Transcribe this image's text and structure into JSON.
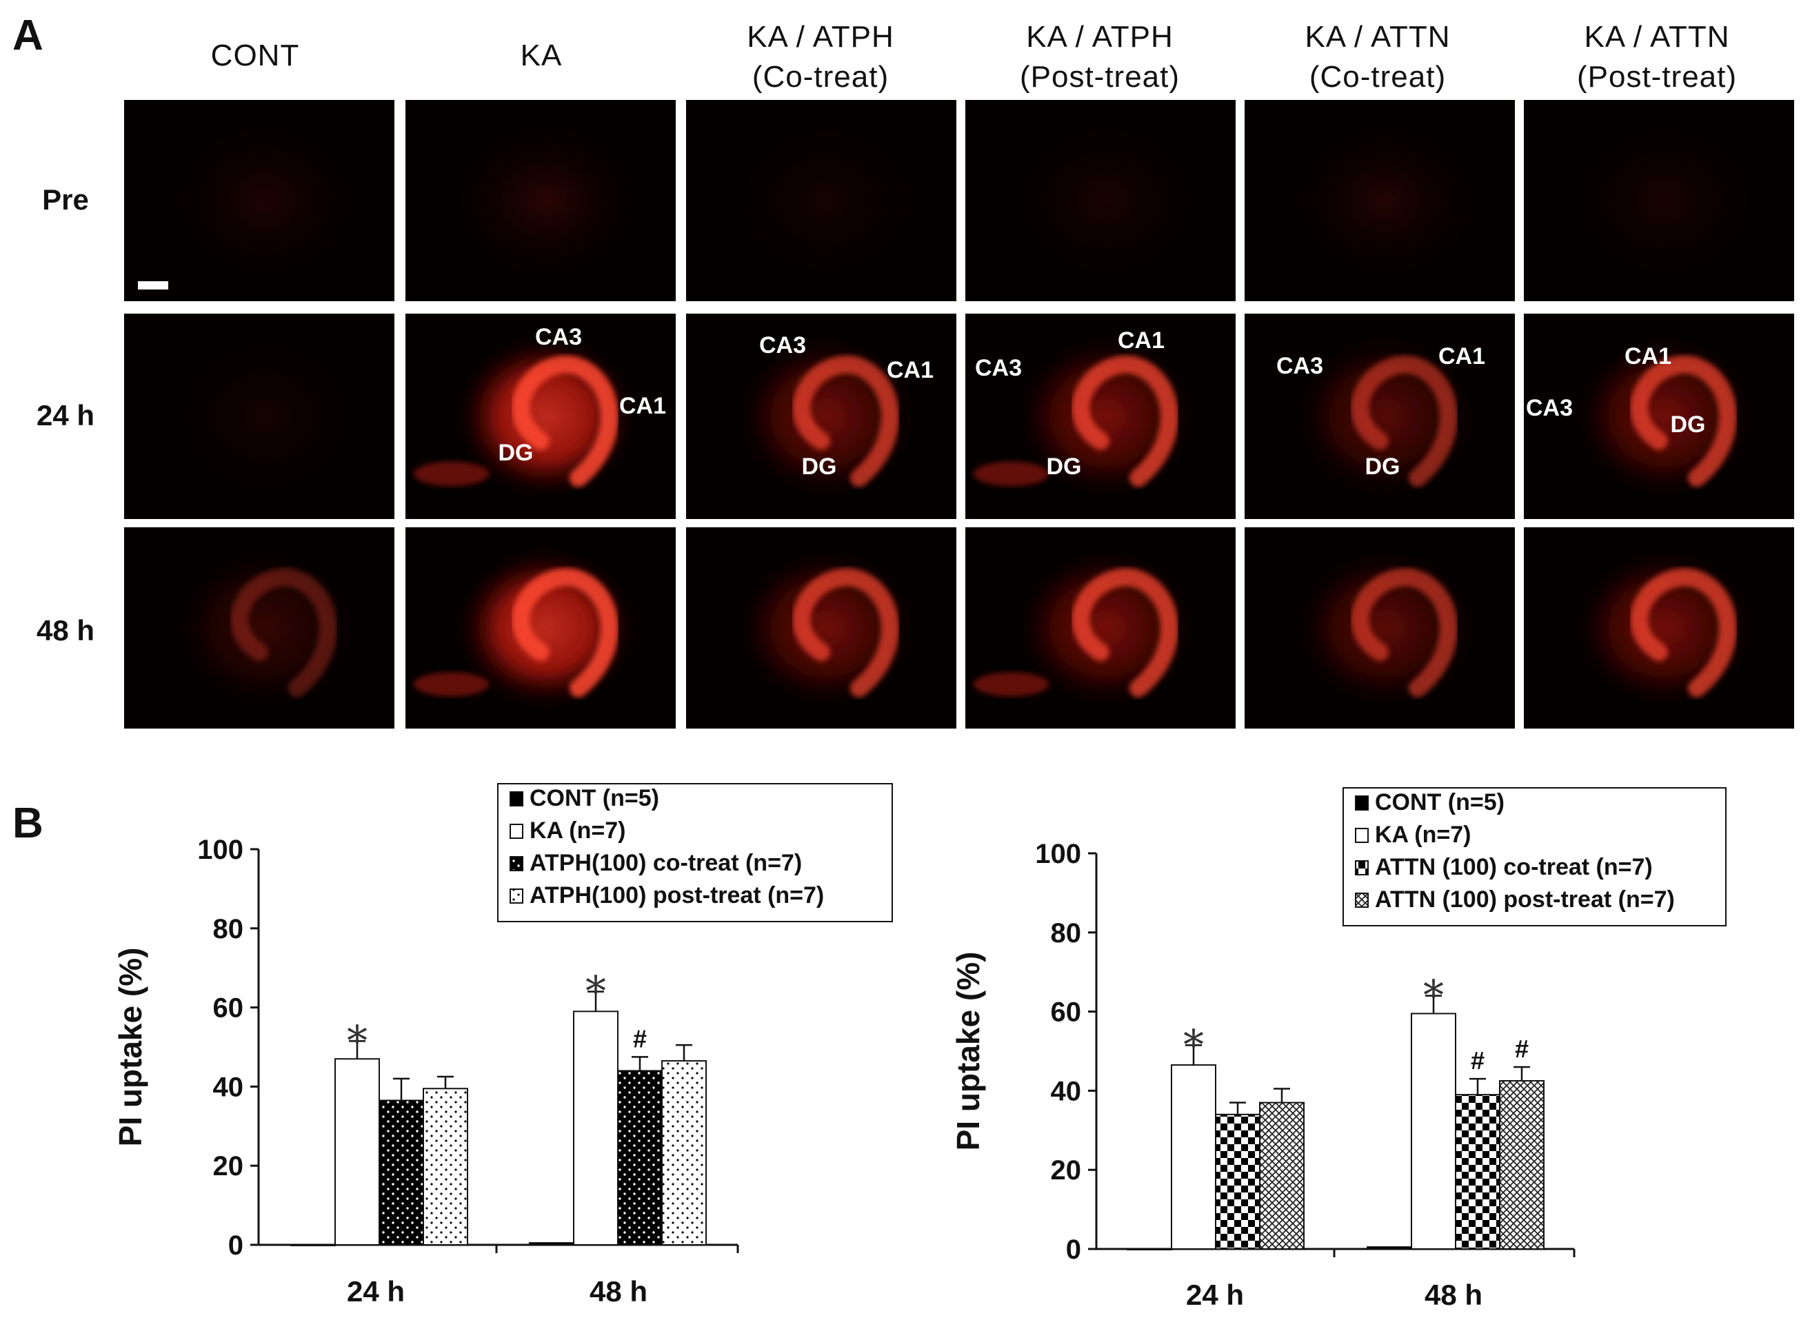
{
  "panel_a": {
    "letter": "A",
    "columns": [
      {
        "line1": "CONT",
        "line2": ""
      },
      {
        "line1": "KA",
        "line2": ""
      },
      {
        "line1": "KA / ATPH",
        "line2": "(Co-treat)"
      },
      {
        "line1": "KA / ATPH",
        "line2": "(Post-treat)"
      },
      {
        "line1": "KA / ATTN",
        "line2": "(Co-treat)"
      },
      {
        "line1": "KA / ATTN",
        "line2": "(Post-treat)"
      }
    ],
    "rows": [
      "Pre",
      "24 h",
      "48 h"
    ],
    "region_labels": [
      "CA3",
      "CA1",
      "DG"
    ]
  },
  "panel_b": {
    "letter": "B",
    "left_legend": [
      "CONT (n=5)",
      "KA (n=7)",
      "ATPH(100) co-treat (n=7)",
      "ATPH(100) post-treat (n=7)"
    ],
    "right_legend": [
      "CONT (n=5)",
      "KA (n=7)",
      "ATTN (100) co-treat (n=7)",
      "ATTN (100) post-treat (n=7)"
    ]
  },
  "chart_data": [
    {
      "type": "bar",
      "title": "",
      "xlabel": "",
      "ylabel": "PI uptake (%)",
      "ylim": [
        0,
        100
      ],
      "yticks": [
        0,
        20,
        40,
        60,
        80,
        100
      ],
      "categories": [
        "24 h",
        "48 h"
      ],
      "series": [
        {
          "name": "CONT (n=5)",
          "values": [
            0,
            0.5
          ],
          "errors": [
            0,
            0
          ],
          "fill": "solid-black",
          "markers": [
            "",
            ""
          ]
        },
        {
          "name": "KA (n=7)",
          "values": [
            47,
            59
          ],
          "errors": [
            4.5,
            5
          ],
          "fill": "white",
          "markers": [
            "*",
            "*"
          ]
        },
        {
          "name": "ATPH(100) co-treat (n=7)",
          "values": [
            36.5,
            44
          ],
          "errors": [
            5.5,
            3.5
          ],
          "fill": "dots-white-on-black",
          "markers": [
            "",
            "#"
          ]
        },
        {
          "name": "ATPH(100) post-treat (n=7)",
          "values": [
            39.5,
            46.5
          ],
          "errors": [
            3,
            4
          ],
          "fill": "dots-black-on-white",
          "markers": [
            "",
            ""
          ]
        }
      ],
      "grid": false
    },
    {
      "type": "bar",
      "title": "",
      "xlabel": "",
      "ylabel": "PI uptake (%)",
      "ylim": [
        0,
        100
      ],
      "yticks": [
        0,
        20,
        40,
        60,
        80,
        100
      ],
      "categories": [
        "24 h",
        "48 h"
      ],
      "series": [
        {
          "name": "CONT (n=5)",
          "values": [
            0,
            0.5
          ],
          "errors": [
            0,
            0
          ],
          "fill": "solid-black",
          "markers": [
            "",
            ""
          ]
        },
        {
          "name": "KA (n=7)",
          "values": [
            46.5,
            59.5
          ],
          "errors": [
            5,
            4.5
          ],
          "fill": "white",
          "markers": [
            "*",
            "*"
          ]
        },
        {
          "name": "ATTN (100) co-treat (n=7)",
          "values": [
            34,
            39
          ],
          "errors": [
            3,
            4
          ],
          "fill": "checker",
          "markers": [
            "",
            "#"
          ]
        },
        {
          "name": "ATTN (100) post-treat (n=7)",
          "values": [
            37,
            42.5
          ],
          "errors": [
            3.5,
            3.5
          ],
          "fill": "crosshatch",
          "markers": [
            "",
            "#"
          ]
        }
      ],
      "grid": false
    }
  ]
}
